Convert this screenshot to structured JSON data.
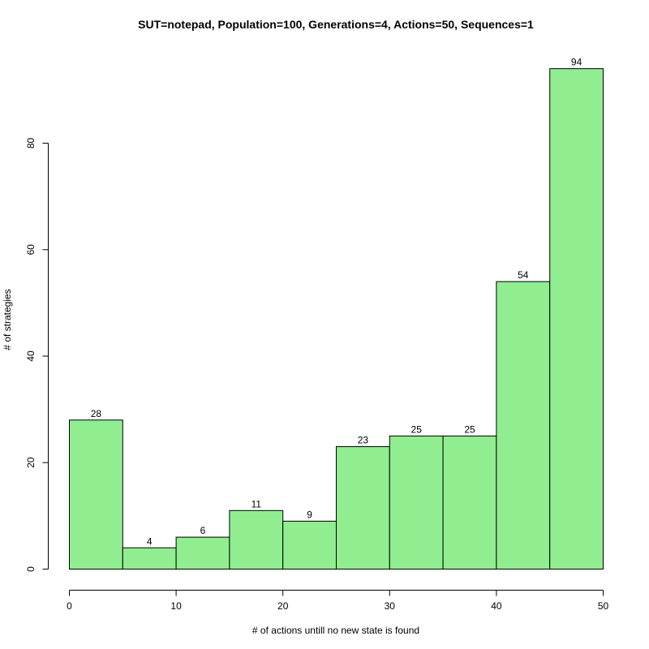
{
  "chart_data": {
    "type": "bar",
    "title": "SUT=notepad, Population=100, Generations=4, Actions=50, Sequences=1",
    "xlabel": "# of actions untill no new state is found",
    "ylabel": "# of strategies",
    "bin_edges": [
      0,
      5,
      10,
      15,
      20,
      25,
      30,
      35,
      40,
      45,
      50
    ],
    "values": [
      28,
      4,
      6,
      11,
      9,
      23,
      25,
      25,
      54,
      94
    ],
    "xlim": [
      0,
      50
    ],
    "ylim": [
      0,
      94
    ],
    "x_ticks": [
      0,
      10,
      20,
      30,
      40,
      50
    ],
    "y_ticks": [
      0,
      20,
      40,
      60,
      80
    ],
    "bar_color": "#90EE90",
    "grid": false
  }
}
